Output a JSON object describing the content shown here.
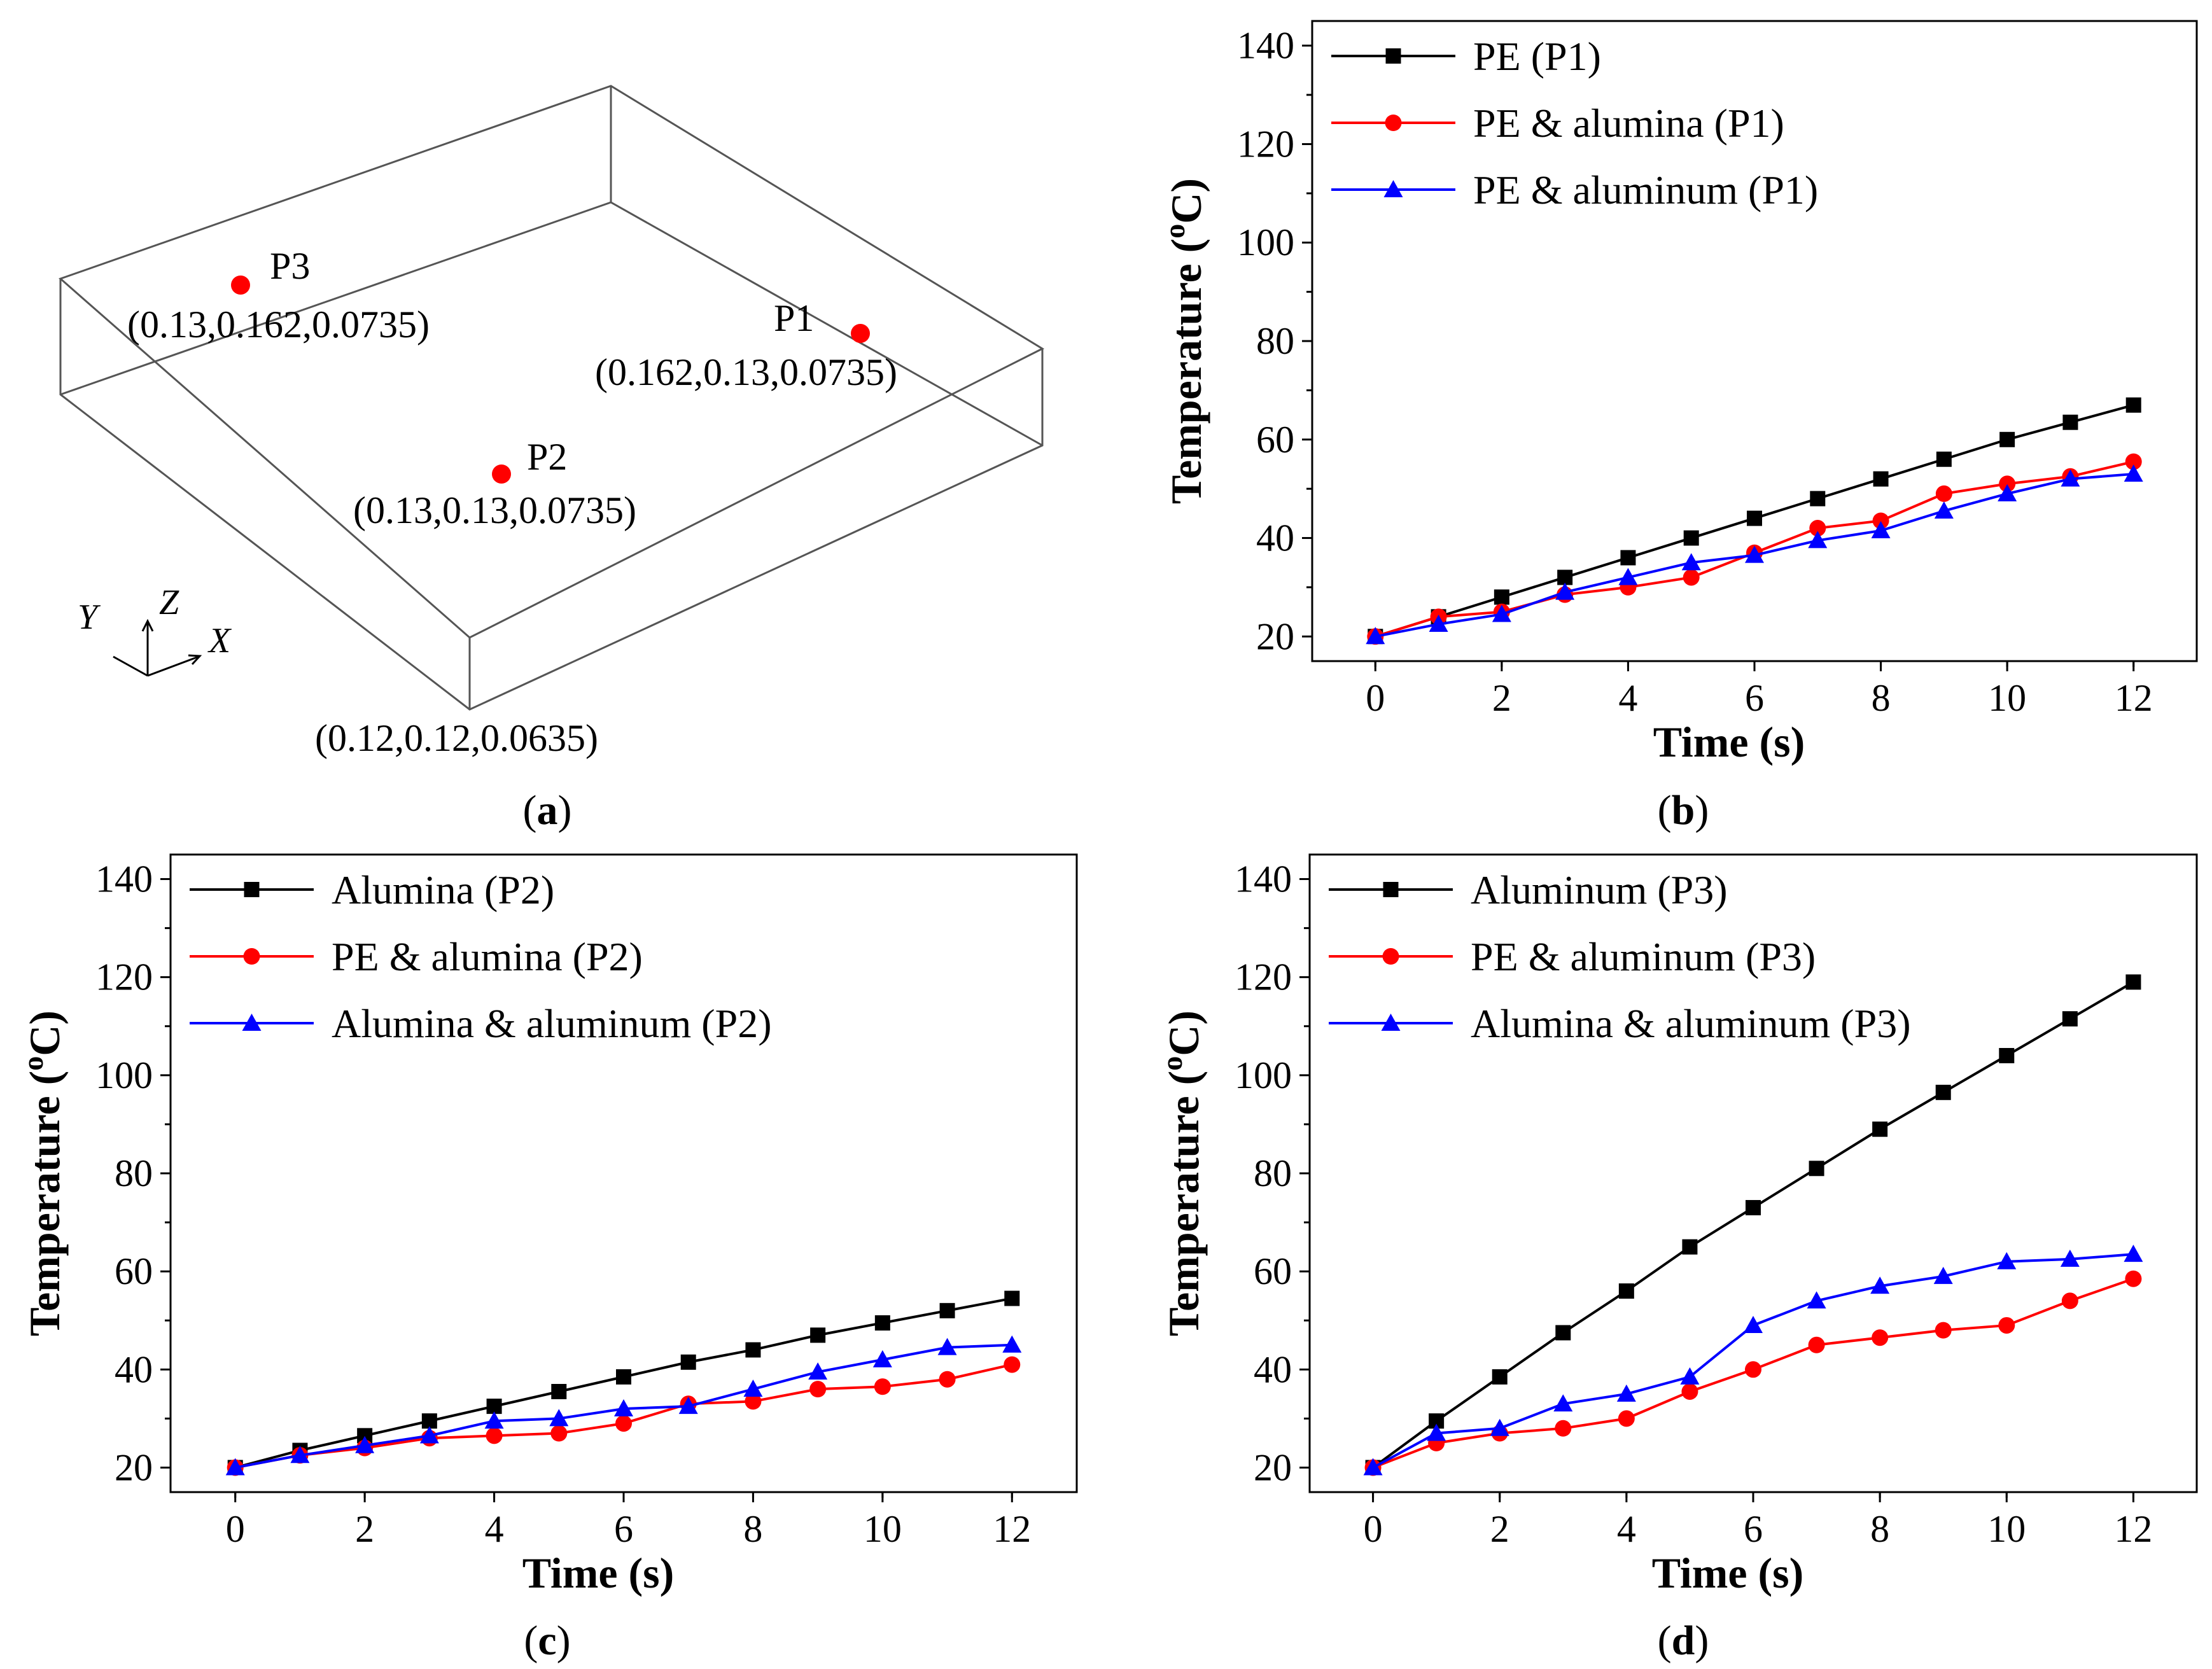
{
  "panels": {
    "a": {
      "label_open": "(",
      "label_letter": "a",
      "label_close": ")",
      "points": [
        {
          "name": "P3",
          "coord": "(0.13,0.162,0.0735)"
        },
        {
          "name": "P1",
          "coord": "(0.162,0.13,0.0735)"
        },
        {
          "name": "P2",
          "coord": "(0.13,0.13,0.0735)"
        }
      ],
      "corner_coord": "(0.12,0.12,0.0635)",
      "axes": {
        "y": "Y",
        "z": "Z",
        "x": "X"
      },
      "marker_color": "#ff0000"
    }
  },
  "chart_data": [
    {
      "id": "b",
      "type": "line",
      "panel_letter": "b",
      "xlabel": "Time (s)",
      "ylabel": "Temperature (",
      "ylabel_sup": "o",
      "ylabel_end": "C)",
      "xlim": [
        -1,
        13
      ],
      "ylim": [
        15,
        145
      ],
      "xticks": [
        0,
        2,
        4,
        6,
        8,
        10,
        12
      ],
      "yticks": [
        20,
        40,
        60,
        80,
        100,
        120,
        140
      ],
      "legend": "top-left",
      "x": [
        0,
        1,
        2,
        3,
        4,
        5,
        6,
        7,
        8,
        9,
        10,
        11,
        12
      ],
      "series": [
        {
          "name": "PE (P1)",
          "color": "#000000",
          "marker": "square",
          "values": [
            20,
            24,
            28,
            32,
            36,
            40,
            44,
            48,
            52,
            56,
            60,
            63.5,
            67
          ]
        },
        {
          "name": "PE & alumina  (P1)",
          "color": "#ff0000",
          "marker": "circle",
          "values": [
            20,
            24,
            25,
            28.5,
            30,
            32,
            37,
            42,
            43.5,
            49,
            51,
            52.5,
            55.5
          ]
        },
        {
          "name": "PE & aluminum (P1)",
          "color": "#0000ff",
          "marker": "triangle",
          "values": [
            20,
            22.5,
            24.5,
            29,
            32,
            35,
            36.5,
            39.5,
            41.5,
            45.5,
            49,
            52,
            53
          ]
        }
      ]
    },
    {
      "id": "c",
      "type": "line",
      "panel_letter": "c",
      "xlabel": "Time (s)",
      "ylabel": "Temperature (",
      "ylabel_sup": "o",
      "ylabel_end": "C)",
      "xlim": [
        -1,
        13
      ],
      "ylim": [
        15,
        145
      ],
      "xticks": [
        0,
        2,
        4,
        6,
        8,
        10,
        12
      ],
      "yticks": [
        20,
        40,
        60,
        80,
        100,
        120,
        140
      ],
      "legend": "top-left",
      "x": [
        0,
        1,
        2,
        3,
        4,
        5,
        6,
        7,
        8,
        9,
        10,
        11,
        12
      ],
      "series": [
        {
          "name": "Alumina (P2)",
          "color": "#000000",
          "marker": "square",
          "values": [
            20,
            23.5,
            26.5,
            29.5,
            32.5,
            35.5,
            38.5,
            41.5,
            44,
            47,
            49.5,
            52,
            54.5
          ]
        },
        {
          "name": "PE & alumina  (P2)",
          "color": "#ff0000",
          "marker": "circle",
          "values": [
            20,
            22.5,
            24,
            26,
            26.5,
            27,
            29,
            33,
            33.5,
            36,
            36.5,
            38,
            41
          ]
        },
        {
          "name": "Alumina & aluminum  (P2)",
          "color": "#0000ff",
          "marker": "triangle",
          "values": [
            20,
            22.5,
            24.5,
            26.5,
            29.5,
            30,
            32,
            32.5,
            36,
            39.5,
            42,
            44.5,
            45
          ]
        }
      ]
    },
    {
      "id": "d",
      "type": "line",
      "panel_letter": "d",
      "xlabel": "Time (s)",
      "ylabel": "Temperature (",
      "ylabel_sup": "o",
      "ylabel_end": "C)",
      "xlim": [
        -1,
        13
      ],
      "ylim": [
        15,
        145
      ],
      "xticks": [
        0,
        2,
        4,
        6,
        8,
        10,
        12
      ],
      "yticks": [
        20,
        40,
        60,
        80,
        100,
        120,
        140
      ],
      "legend": "top-left",
      "x": [
        0,
        1,
        2,
        3,
        4,
        5,
        6,
        7,
        8,
        9,
        10,
        11,
        12
      ],
      "series": [
        {
          "name": "Aluminum (P3)",
          "color": "#000000",
          "marker": "square",
          "values": [
            20,
            29.5,
            38.5,
            47.5,
            56,
            65,
            73,
            81,
            89,
            96.5,
            104,
            111.5,
            119
          ]
        },
        {
          "name": "PE & aluminum (P3)",
          "color": "#ff0000",
          "marker": "circle",
          "values": [
            20,
            25,
            27,
            28,
            30,
            35.5,
            40,
            45,
            46.5,
            48,
            49,
            54,
            58.5
          ]
        },
        {
          "name": "Alumina & aluminum  (P3)",
          "color": "#0000ff",
          "marker": "triangle",
          "values": [
            20,
            27,
            28,
            33,
            35,
            38.5,
            49,
            54,
            57,
            59,
            62,
            62.5,
            63.5
          ]
        }
      ]
    }
  ]
}
